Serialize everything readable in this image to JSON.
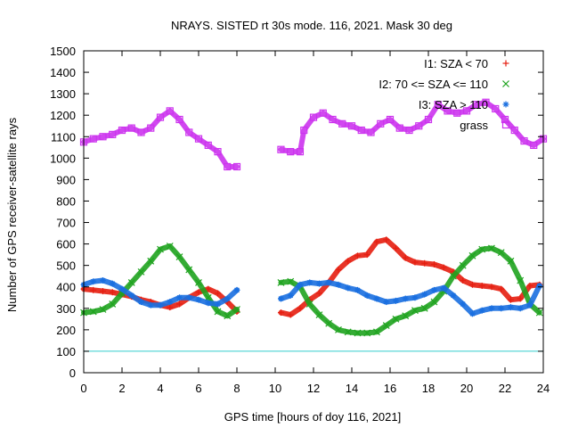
{
  "chart_data": {
    "type": "scatter",
    "title": "NRAYS. SISTED rt 30s mode. 116, 2021. Mask 30 deg",
    "xlabel": "GPS time [hours of doy 116, 2021]",
    "ylabel": "Number of GPS receiver-satellite rays",
    "xlim": [
      0,
      24
    ],
    "ylim": [
      0,
      1500
    ],
    "xticks": [
      0,
      2,
      4,
      6,
      8,
      10,
      12,
      14,
      16,
      18,
      20,
      22,
      24
    ],
    "yticks": [
      0,
      100,
      200,
      300,
      400,
      500,
      600,
      700,
      800,
      900,
      1000,
      1100,
      1200,
      1300,
      1400,
      1500
    ],
    "grid": false,
    "legend_position": "top-right",
    "reference_line": {
      "y": 100,
      "color": "#33cccc"
    },
    "series": [
      {
        "name": "I1: SZA < 70",
        "color": "#e51e10",
        "marker": "+",
        "x": [
          0,
          0.5,
          1,
          1.5,
          2,
          2.5,
          3,
          3.5,
          4,
          4.5,
          5,
          5.5,
          6,
          6.5,
          7,
          7.5,
          8,
          10.3,
          10.8,
          11.3,
          11.8,
          12.3,
          12.8,
          13.3,
          13.8,
          14.3,
          14.8,
          15.3,
          15.8,
          16.3,
          16.8,
          17.3,
          17.8,
          18.3,
          18.8,
          19.3,
          19.8,
          20.3,
          20.8,
          21.3,
          21.8,
          22.3,
          22.8,
          23.3,
          23.8
        ],
        "y": [
          390,
          385,
          380,
          375,
          365,
          355,
          340,
          330,
          315,
          305,
          320,
          350,
          375,
          390,
          370,
          330,
          285,
          280,
          270,
          300,
          340,
          370,
          420,
          480,
          520,
          545,
          550,
          610,
          620,
          580,
          535,
          515,
          510,
          505,
          490,
          470,
          430,
          410,
          405,
          400,
          390,
          340,
          345,
          405,
          410
        ]
      },
      {
        "name": "I2: 70 <= SZA <= 110",
        "color": "#1fa31f",
        "marker": "x",
        "x": [
          0,
          0.5,
          1,
          1.5,
          2,
          2.5,
          3,
          3.5,
          4,
          4.5,
          5,
          5.5,
          6,
          6.5,
          7,
          7.5,
          8,
          10.3,
          10.8,
          11.3,
          11.8,
          12.3,
          12.8,
          13.3,
          13.8,
          14.3,
          14.8,
          15.3,
          15.8,
          16.3,
          16.8,
          17.3,
          17.8,
          18.3,
          18.8,
          19.3,
          19.8,
          20.3,
          20.8,
          21.3,
          21.8,
          22.3,
          22.8,
          23.3,
          23.8
        ],
        "y": [
          280,
          285,
          295,
          320,
          370,
          420,
          470,
          520,
          575,
          590,
          540,
          480,
          420,
          350,
          285,
          265,
          295,
          420,
          425,
          400,
          320,
          270,
          230,
          200,
          190,
          185,
          185,
          190,
          220,
          250,
          265,
          290,
          300,
          330,
          380,
          450,
          500,
          545,
          575,
          580,
          560,
          520,
          430,
          320,
          280
        ]
      },
      {
        "name": "I3: SZA > 110",
        "color": "#1a6fe0",
        "marker": "*",
        "x": [
          0,
          0.5,
          1,
          1.5,
          2,
          2.5,
          3,
          3.5,
          4,
          4.5,
          5,
          5.5,
          6,
          6.5,
          7,
          7.5,
          8,
          10.3,
          10.8,
          11.3,
          11.8,
          12.3,
          12.8,
          13.3,
          13.8,
          14.3,
          14.8,
          15.3,
          15.8,
          16.3,
          16.8,
          17.3,
          17.8,
          18.3,
          18.8,
          19.3,
          19.8,
          20.3,
          20.8,
          21.3,
          21.8,
          22.3,
          22.8,
          23.3,
          23.8
        ],
        "y": [
          410,
          425,
          430,
          415,
          390,
          360,
          330,
          315,
          315,
          330,
          350,
          350,
          340,
          325,
          320,
          345,
          385,
          345,
          360,
          410,
          420,
          415,
          420,
          410,
          395,
          385,
          360,
          345,
          330,
          335,
          345,
          350,
          365,
          385,
          395,
          360,
          320,
          275,
          290,
          300,
          300,
          305,
          300,
          315,
          405
        ]
      },
      {
        "name": "grass",
        "color": "#cc33ee",
        "marker": "square",
        "x": [
          0,
          0.5,
          1,
          1.5,
          2,
          2.5,
          3,
          3.5,
          4,
          4.5,
          5,
          5.5,
          6,
          6.5,
          7,
          7.5,
          8,
          10.3,
          10.8,
          11.3,
          11.5,
          12,
          12.5,
          13,
          13.5,
          14,
          14.5,
          15,
          15.5,
          16,
          16.5,
          17,
          17.5,
          18,
          18.5,
          19,
          19.5,
          20,
          20.5,
          21,
          21.5,
          22,
          22.5,
          23,
          23.5,
          24
        ],
        "y": [
          1075,
          1090,
          1100,
          1110,
          1130,
          1140,
          1120,
          1140,
          1190,
          1220,
          1180,
          1120,
          1090,
          1060,
          1030,
          960,
          960,
          1040,
          1030,
          1030,
          1130,
          1190,
          1210,
          1180,
          1160,
          1150,
          1130,
          1120,
          1160,
          1180,
          1140,
          1130,
          1150,
          1180,
          1250,
          1220,
          1210,
          1220,
          1250,
          1260,
          1230,
          1180,
          1130,
          1080,
          1060,
          1090
        ]
      }
    ]
  }
}
